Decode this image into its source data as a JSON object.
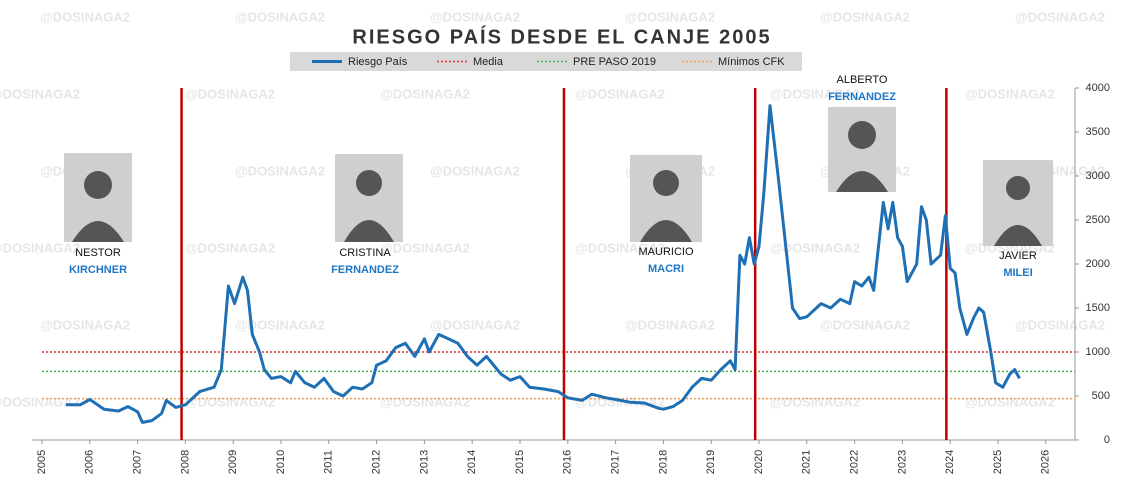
{
  "watermark": "@DOSINAGA2",
  "chart_data": {
    "type": "line",
    "title": "RIESGO PAÍS DESDE EL CANJE 2005",
    "x": [
      2005.5,
      2005.8,
      2006.0,
      2006.3,
      2006.6,
      2006.8,
      2007.0,
      2007.1,
      2007.3,
      2007.5,
      2007.6,
      2007.8,
      2008.0,
      2008.3,
      2008.6,
      2008.75,
      2008.9,
      2009.03,
      2009.2,
      2009.3,
      2009.4,
      2009.55,
      2009.65,
      2009.8,
      2010.0,
      2010.2,
      2010.3,
      2010.5,
      2010.7,
      2010.9,
      2011.1,
      2011.3,
      2011.5,
      2011.7,
      2011.9,
      2012.0,
      2012.2,
      2012.4,
      2012.6,
      2012.8,
      2013.0,
      2013.1,
      2013.3,
      2013.5,
      2013.7,
      2013.9,
      2014.1,
      2014.3,
      2014.6,
      2014.8,
      2015.0,
      2015.2,
      2015.5,
      2015.8,
      2016.0,
      2016.3,
      2016.5,
      2016.8,
      2017.0,
      2017.3,
      2017.6,
      2017.9,
      2018.0,
      2018.2,
      2018.4,
      2018.6,
      2018.8,
      2019.0,
      2019.2,
      2019.4,
      2019.5,
      2019.6,
      2019.7,
      2019.8,
      2019.9,
      2020.0,
      2020.1,
      2020.23,
      2020.4,
      2020.5,
      2020.6,
      2020.7,
      2020.85,
      2021.0,
      2021.3,
      2021.5,
      2021.7,
      2021.9,
      2022.0,
      2022.15,
      2022.3,
      2022.4,
      2022.6,
      2022.7,
      2022.8,
      2022.9,
      2023.0,
      2023.1,
      2023.3,
      2023.4,
      2023.5,
      2023.6,
      2023.8,
      2023.9,
      2024.0,
      2024.1,
      2024.2,
      2024.35,
      2024.5,
      2024.6,
      2024.7,
      2024.85,
      2024.95,
      2025.1,
      2025.25,
      2025.35,
      2025.45
    ],
    "series": [
      {
        "name": "Riesgo País",
        "color": "#1f6fb5",
        "values": [
          400,
          400,
          460,
          350,
          330,
          380,
          320,
          200,
          220,
          300,
          450,
          370,
          400,
          550,
          600,
          800,
          1750,
          1550,
          1850,
          1700,
          1200,
          1000,
          800,
          700,
          720,
          650,
          780,
          650,
          600,
          700,
          550,
          500,
          600,
          580,
          650,
          850,
          900,
          1050,
          1100,
          950,
          1150,
          1000,
          1200,
          1150,
          1100,
          950,
          850,
          950,
          750,
          680,
          720,
          600,
          580,
          550,
          480,
          450,
          520,
          480,
          460,
          430,
          420,
          360,
          350,
          380,
          450,
          600,
          700,
          680,
          800,
          900,
          800,
          2100,
          2000,
          2300,
          2000,
          2200,
          2800,
          3800,
          3000,
          2500,
          2000,
          1500,
          1380,
          1400,
          1550,
          1500,
          1600,
          1550,
          1800,
          1750,
          1850,
          1700,
          2700,
          2400,
          2700,
          2300,
          2200,
          1800,
          2000,
          2650,
          2500,
          2000,
          2100,
          2550,
          1950,
          1900,
          1500,
          1200,
          1400,
          1500,
          1450,
          1000,
          650,
          600,
          750,
          800,
          700
        ]
      }
    ],
    "reference_lines": [
      {
        "name": "Media",
        "value": 1000,
        "color": "#e03030"
      },
      {
        "name": "PRE PASO 2019",
        "value": 780,
        "color": "#4caf50"
      },
      {
        "name": "Mínimos CFK",
        "value": 470,
        "color": "#f0a050"
      }
    ],
    "vlines": [
      2007.92,
      2015.92,
      2019.92,
      2023.92
    ],
    "vline_color": "#c00000",
    "xlim": [
      2005,
      2026
    ],
    "xticks": [
      2005,
      2006,
      2007,
      2008,
      2009,
      2010,
      2011,
      2012,
      2013,
      2014,
      2015,
      2016,
      2017,
      2018,
      2019,
      2020,
      2021,
      2022,
      2023,
      2024,
      2025,
      2026
    ],
    "ylim": [
      0,
      4000
    ],
    "yticks": [
      0,
      500,
      1000,
      1500,
      2000,
      2500,
      3000,
      3500,
      4000
    ],
    "annotations": [
      {
        "first": "NESTOR",
        "last": "KIRCHNER"
      },
      {
        "first": "CRISTINA",
        "last": "FERNANDEZ"
      },
      {
        "first": "MAURICIO",
        "last": "MACRI"
      },
      {
        "first": "ALBERTO",
        "last": "FERNANDEZ"
      },
      {
        "first": "JAVIER",
        "last": "MILEI"
      }
    ]
  }
}
